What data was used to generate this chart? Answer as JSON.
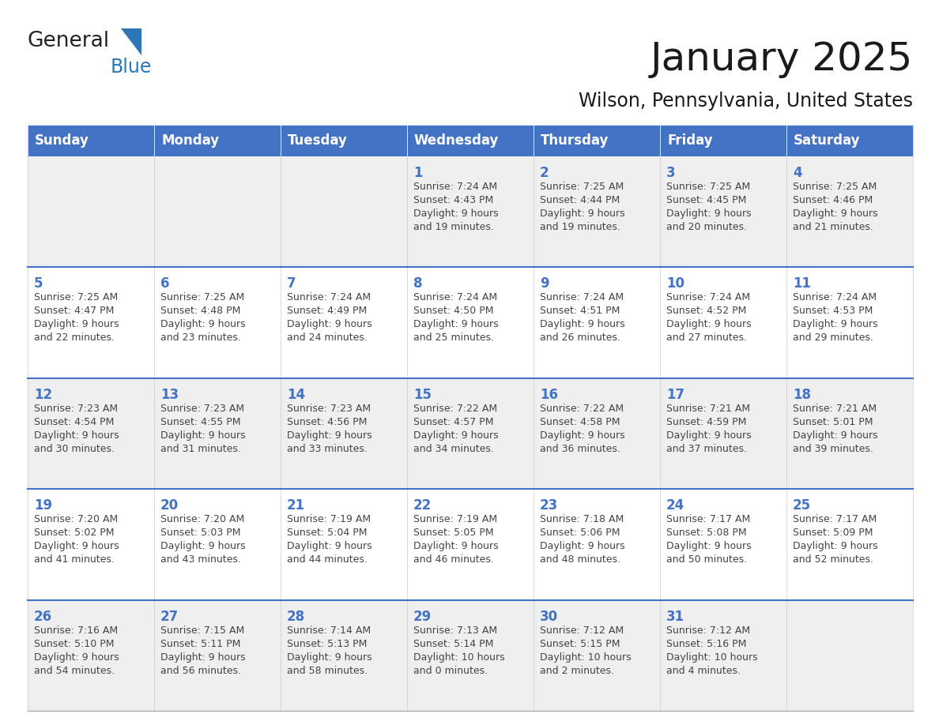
{
  "title": "January 2025",
  "subtitle": "Wilson, Pennsylvania, United States",
  "header_bg": "#4472C4",
  "header_text_color": "#FFFFFF",
  "cell_bg_white": "#FFFFFF",
  "cell_bg_gray": "#EFEFEF",
  "day_number_color": "#4472C4",
  "cell_text_color": "#444444",
  "separator_color": "#4472C4",
  "days_of_week": [
    "Sunday",
    "Monday",
    "Tuesday",
    "Wednesday",
    "Thursday",
    "Friday",
    "Saturday"
  ],
  "calendar_data": [
    [
      {
        "day": null,
        "sunrise": null,
        "sunset": null,
        "daylight": null
      },
      {
        "day": null,
        "sunrise": null,
        "sunset": null,
        "daylight": null
      },
      {
        "day": null,
        "sunrise": null,
        "sunset": null,
        "daylight": null
      },
      {
        "day": 1,
        "sunrise": "7:24 AM",
        "sunset": "4:43 PM",
        "daylight": "9 hours\nand 19 minutes."
      },
      {
        "day": 2,
        "sunrise": "7:25 AM",
        "sunset": "4:44 PM",
        "daylight": "9 hours\nand 19 minutes."
      },
      {
        "day": 3,
        "sunrise": "7:25 AM",
        "sunset": "4:45 PM",
        "daylight": "9 hours\nand 20 minutes."
      },
      {
        "day": 4,
        "sunrise": "7:25 AM",
        "sunset": "4:46 PM",
        "daylight": "9 hours\nand 21 minutes."
      }
    ],
    [
      {
        "day": 5,
        "sunrise": "7:25 AM",
        "sunset": "4:47 PM",
        "daylight": "9 hours\nand 22 minutes."
      },
      {
        "day": 6,
        "sunrise": "7:25 AM",
        "sunset": "4:48 PM",
        "daylight": "9 hours\nand 23 minutes."
      },
      {
        "day": 7,
        "sunrise": "7:24 AM",
        "sunset": "4:49 PM",
        "daylight": "9 hours\nand 24 minutes."
      },
      {
        "day": 8,
        "sunrise": "7:24 AM",
        "sunset": "4:50 PM",
        "daylight": "9 hours\nand 25 minutes."
      },
      {
        "day": 9,
        "sunrise": "7:24 AM",
        "sunset": "4:51 PM",
        "daylight": "9 hours\nand 26 minutes."
      },
      {
        "day": 10,
        "sunrise": "7:24 AM",
        "sunset": "4:52 PM",
        "daylight": "9 hours\nand 27 minutes."
      },
      {
        "day": 11,
        "sunrise": "7:24 AM",
        "sunset": "4:53 PM",
        "daylight": "9 hours\nand 29 minutes."
      }
    ],
    [
      {
        "day": 12,
        "sunrise": "7:23 AM",
        "sunset": "4:54 PM",
        "daylight": "9 hours\nand 30 minutes."
      },
      {
        "day": 13,
        "sunrise": "7:23 AM",
        "sunset": "4:55 PM",
        "daylight": "9 hours\nand 31 minutes."
      },
      {
        "day": 14,
        "sunrise": "7:23 AM",
        "sunset": "4:56 PM",
        "daylight": "9 hours\nand 33 minutes."
      },
      {
        "day": 15,
        "sunrise": "7:22 AM",
        "sunset": "4:57 PM",
        "daylight": "9 hours\nand 34 minutes."
      },
      {
        "day": 16,
        "sunrise": "7:22 AM",
        "sunset": "4:58 PM",
        "daylight": "9 hours\nand 36 minutes."
      },
      {
        "day": 17,
        "sunrise": "7:21 AM",
        "sunset": "4:59 PM",
        "daylight": "9 hours\nand 37 minutes."
      },
      {
        "day": 18,
        "sunrise": "7:21 AM",
        "sunset": "5:01 PM",
        "daylight": "9 hours\nand 39 minutes."
      }
    ],
    [
      {
        "day": 19,
        "sunrise": "7:20 AM",
        "sunset": "5:02 PM",
        "daylight": "9 hours\nand 41 minutes."
      },
      {
        "day": 20,
        "sunrise": "7:20 AM",
        "sunset": "5:03 PM",
        "daylight": "9 hours\nand 43 minutes."
      },
      {
        "day": 21,
        "sunrise": "7:19 AM",
        "sunset": "5:04 PM",
        "daylight": "9 hours\nand 44 minutes."
      },
      {
        "day": 22,
        "sunrise": "7:19 AM",
        "sunset": "5:05 PM",
        "daylight": "9 hours\nand 46 minutes."
      },
      {
        "day": 23,
        "sunrise": "7:18 AM",
        "sunset": "5:06 PM",
        "daylight": "9 hours\nand 48 minutes."
      },
      {
        "day": 24,
        "sunrise": "7:17 AM",
        "sunset": "5:08 PM",
        "daylight": "9 hours\nand 50 minutes."
      },
      {
        "day": 25,
        "sunrise": "7:17 AM",
        "sunset": "5:09 PM",
        "daylight": "9 hours\nand 52 minutes."
      }
    ],
    [
      {
        "day": 26,
        "sunrise": "7:16 AM",
        "sunset": "5:10 PM",
        "daylight": "9 hours\nand 54 minutes."
      },
      {
        "day": 27,
        "sunrise": "7:15 AM",
        "sunset": "5:11 PM",
        "daylight": "9 hours\nand 56 minutes."
      },
      {
        "day": 28,
        "sunrise": "7:14 AM",
        "sunset": "5:13 PM",
        "daylight": "9 hours\nand 58 minutes."
      },
      {
        "day": 29,
        "sunrise": "7:13 AM",
        "sunset": "5:14 PM",
        "daylight": "10 hours\nand 0 minutes."
      },
      {
        "day": 30,
        "sunrise": "7:12 AM",
        "sunset": "5:15 PM",
        "daylight": "10 hours\nand 2 minutes."
      },
      {
        "day": 31,
        "sunrise": "7:12 AM",
        "sunset": "5:16 PM",
        "daylight": "10 hours\nand 4 minutes."
      },
      {
        "day": null,
        "sunrise": null,
        "sunset": null,
        "daylight": null
      }
    ]
  ],
  "logo_general_color": "#222222",
  "logo_blue_color": "#2E75B6",
  "logo_triangle_color": "#2E75B6"
}
